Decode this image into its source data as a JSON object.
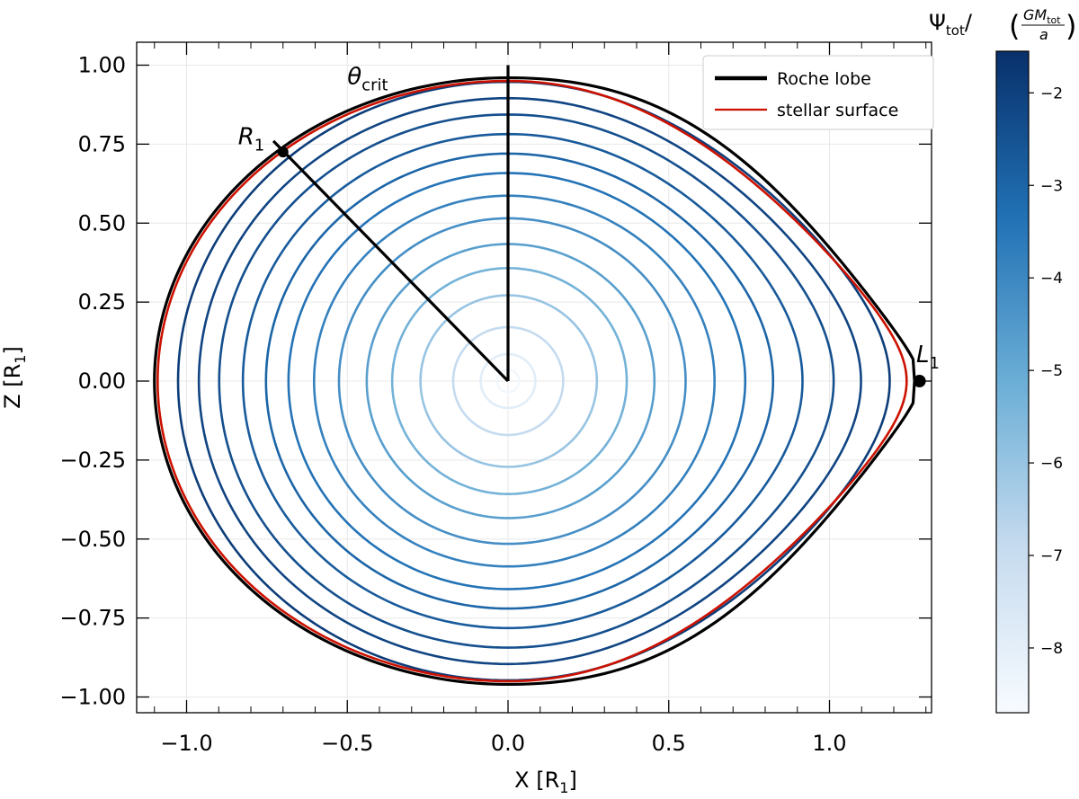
{
  "chart_data": {
    "type": "line",
    "xlabel": "X [R",
    "xlabel_sub": "1",
    "xlabel_suffix": "]",
    "ylabel": "Z [R",
    "ylabel_sub": "1",
    "ylabel_suffix": "]",
    "xlim": [
      -1.17,
      1.35
    ],
    "ylim": [
      -1.05,
      1.05
    ],
    "x_ticks": [
      -1.0,
      -0.5,
      0.0,
      0.5,
      1.0
    ],
    "x_tick_labels": [
      "−1.0",
      "−0.5",
      "0.0",
      "0.5",
      "1.0"
    ],
    "y_ticks": [
      -1.0,
      -0.75,
      -0.5,
      -0.25,
      0.0,
      0.25,
      0.5,
      0.75,
      1.0
    ],
    "y_tick_labels": [
      "−1.00",
      "−0.75",
      "−0.50",
      "−0.25",
      "0.00",
      "0.25",
      "0.50",
      "0.75",
      "1.00"
    ],
    "grid": true,
    "legend": {
      "placement": "top-right",
      "entries": [
        {
          "label": "Roche lobe",
          "color": "#000000"
        },
        {
          "label": "stellar surface",
          "color": "#cc1100"
        }
      ]
    },
    "roche_lobe": {
      "x_min": -1.1,
      "x_L1": 1.28,
      "z_max": 0.96
    },
    "stellar_surface": {
      "x_min": -1.09,
      "x_max": 1.24,
      "z_max": 0.95
    },
    "equipotential_contours": [
      {
        "r": 0.035,
        "psi": -8.5
      },
      {
        "r": 0.085,
        "psi": -7.9
      },
      {
        "r": 0.17,
        "psi": -6.9
      },
      {
        "r": 0.27,
        "psi": -6.0
      },
      {
        "r": 0.355,
        "psi": -5.3
      },
      {
        "r": 0.43,
        "psi": -4.7
      },
      {
        "r": 0.51,
        "psi": -4.2
      },
      {
        "r": 0.58,
        "psi": -3.8
      },
      {
        "r": 0.65,
        "psi": -3.4
      },
      {
        "r": 0.71,
        "psi": -3.0
      },
      {
        "r": 0.77,
        "psi": -2.7
      },
      {
        "r": 0.83,
        "psi": -2.4
      },
      {
        "r": 0.88,
        "psi": -2.1
      },
      {
        "r": 0.93,
        "psi": -1.9
      }
    ],
    "annotations": {
      "theta_crit": {
        "label": "θ",
        "sub": "crit",
        "x": -0.5,
        "z": 0.94
      },
      "R1": {
        "label": "R",
        "sub": "1",
        "x": -0.84,
        "z": 0.75,
        "point": [
          -0.7,
          0.725
        ]
      },
      "L1": {
        "label": "L",
        "sub": "1",
        "x": 1.27,
        "z": 0.06,
        "point": [
          1.28,
          0.0
        ]
      },
      "radial_line_end": [
        -0.73,
        0.76
      ],
      "vertical_line_end": [
        0.0,
        1.0
      ]
    },
    "colorbar": {
      "label": "Ψ",
      "label_sub": "tot",
      "frac_num": "GM",
      "frac_num_sub": "tot",
      "frac_den": "a",
      "range": [
        -8.7,
        -1.55
      ],
      "ticks": [
        -2,
        -3,
        -4,
        -5,
        -6,
        -7,
        -8
      ],
      "tick_labels": [
        "−2",
        "−3",
        "−4",
        "−5",
        "−6",
        "−7",
        "−8"
      ],
      "colormap": [
        "#f7fbff",
        "#c6dbef",
        "#6baed6",
        "#2171b5",
        "#08306b"
      ]
    }
  }
}
